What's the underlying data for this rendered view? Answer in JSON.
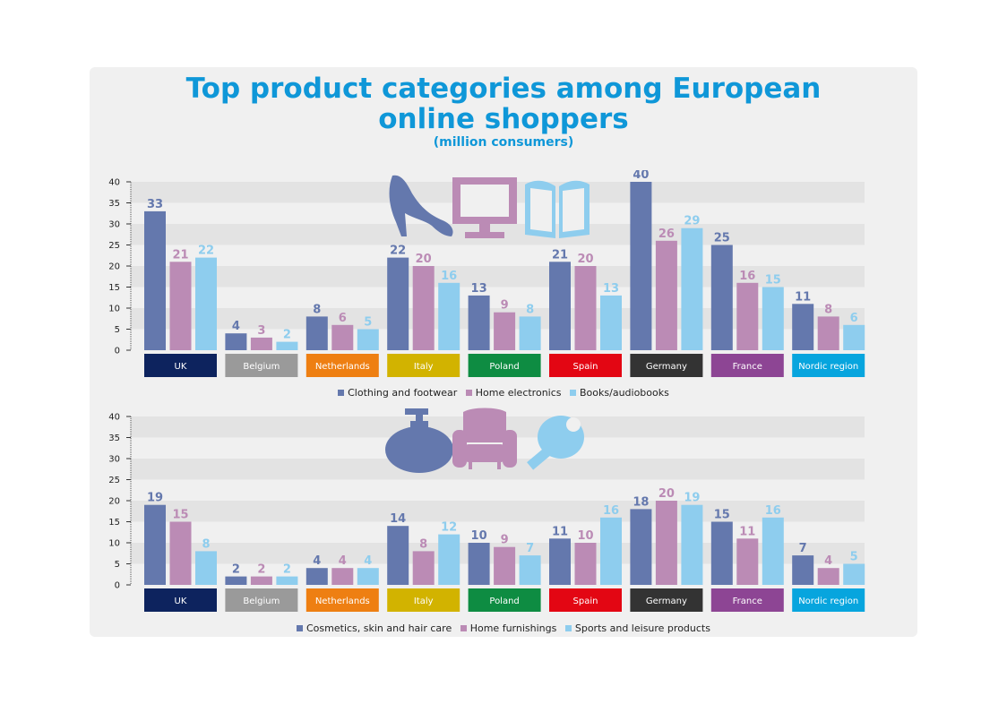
{
  "title_line1": "Top product categories among European",
  "title_line2": "online shoppers",
  "subtitle": "(million consumers)",
  "colors": {
    "series": [
      "#6478ad",
      "#bb8bb5",
      "#8ecdee"
    ],
    "regions": [
      "#0d235e",
      "#9a9a9a",
      "#ee7f12",
      "#d2b300",
      "#0e8c42",
      "#e30613",
      "#333333",
      "#8d4594",
      "#07a5de"
    ]
  },
  "chart_data": [
    {
      "type": "bar",
      "categories": [
        "UK",
        "Belgium",
        "Netherlands",
        "Italy",
        "Poland",
        "Spain",
        "Germany",
        "France",
        "Nordic region"
      ],
      "ylim": [
        0,
        40
      ],
      "yticks": [
        "0",
        "5",
        "10",
        "15",
        "20",
        "25",
        "30",
        "35",
        "40"
      ],
      "series": [
        {
          "name": "Clothing and footwear",
          "values": [
            33,
            4,
            8,
            22,
            13,
            21,
            40,
            25,
            11
          ]
        },
        {
          "name": "Home electronics",
          "values": [
            21,
            3,
            6,
            20,
            9,
            20,
            26,
            16,
            8
          ]
        },
        {
          "name": "Books/audiobooks",
          "values": [
            22,
            2,
            5,
            16,
            8,
            13,
            29,
            15,
            6
          ]
        }
      ],
      "icons": [
        "high-heel-shoe-icon",
        "monitor-icon",
        "book-icon"
      ]
    },
    {
      "type": "bar",
      "categories": [
        "UK",
        "Belgium",
        "Netherlands",
        "Italy",
        "Poland",
        "Spain",
        "Germany",
        "France",
        "Nordic region"
      ],
      "ylim": [
        0,
        40
      ],
      "yticks": [
        "0",
        "5",
        "10",
        "15",
        "20",
        "25",
        "30",
        "35",
        "40"
      ],
      "series": [
        {
          "name": "Cosmetics, skin and hair care",
          "values": [
            19,
            2,
            4,
            14,
            10,
            11,
            18,
            15,
            7
          ]
        },
        {
          "name": "Home furnishings",
          "values": [
            15,
            2,
            4,
            8,
            9,
            10,
            20,
            11,
            4
          ]
        },
        {
          "name": "Sports and leisure products",
          "values": [
            8,
            2,
            4,
            12,
            7,
            16,
            19,
            16,
            5
          ]
        }
      ],
      "icons": [
        "lotion-bottle-icon",
        "armchair-icon",
        "ping-pong-paddle-icon"
      ]
    }
  ]
}
